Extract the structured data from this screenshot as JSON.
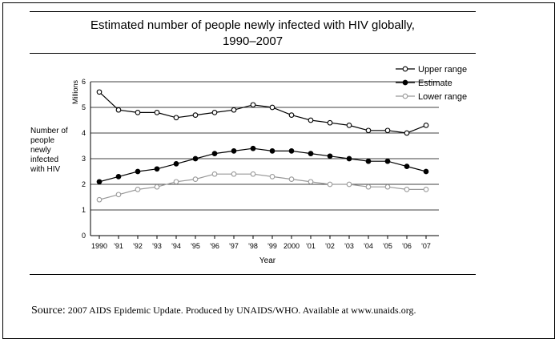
{
  "chart_data": {
    "type": "line",
    "title": "Estimated number of people newly infected with HIV globally,",
    "subtitle": "1990–2007",
    "xlabel": "Year",
    "ylabel": "Number of people newly infected with HIV",
    "ylabel_lines": [
      "Number of",
      "people",
      "newly",
      "infected",
      "with HIV"
    ],
    "yunit": "Millions",
    "ylim": [
      0,
      6
    ],
    "yticks": [
      0,
      1,
      2,
      3,
      4,
      5,
      6
    ],
    "grid": "horizontal",
    "legend_position": "top-right",
    "categories": [
      "1990",
      "'91",
      "'92",
      "'93",
      "'94",
      "'95",
      "'96",
      "'97",
      "'98",
      "'99",
      "2000",
      "'01",
      "'02",
      "'03",
      "'04",
      "'05",
      "'06",
      "'07"
    ],
    "series": [
      {
        "name": "Upper range",
        "marker": "open",
        "color": "#000000",
        "values": [
          5.6,
          4.9,
          4.8,
          4.8,
          4.6,
          4.7,
          4.8,
          4.9,
          5.1,
          5.0,
          4.7,
          4.5,
          4.4,
          4.3,
          4.1,
          4.1,
          4.0,
          4.3
        ]
      },
      {
        "name": "Estimate",
        "marker": "filled",
        "color": "#000000",
        "values": [
          2.1,
          2.3,
          2.5,
          2.6,
          2.8,
          3.0,
          3.2,
          3.3,
          3.4,
          3.3,
          3.3,
          3.2,
          3.1,
          3.0,
          2.9,
          2.9,
          2.7,
          2.5
        ]
      },
      {
        "name": "Lower range",
        "marker": "open",
        "color": "#999999",
        "values": [
          1.4,
          1.6,
          1.8,
          1.9,
          2.1,
          2.2,
          2.4,
          2.4,
          2.4,
          2.3,
          2.2,
          2.1,
          2.0,
          2.0,
          1.9,
          1.9,
          1.8,
          1.8
        ]
      }
    ]
  },
  "source": {
    "lead": "Source:",
    "text": "2007 AIDS Epidemic Update. Produced by UNAIDS/WHO. Available at www.unaids.org."
  }
}
